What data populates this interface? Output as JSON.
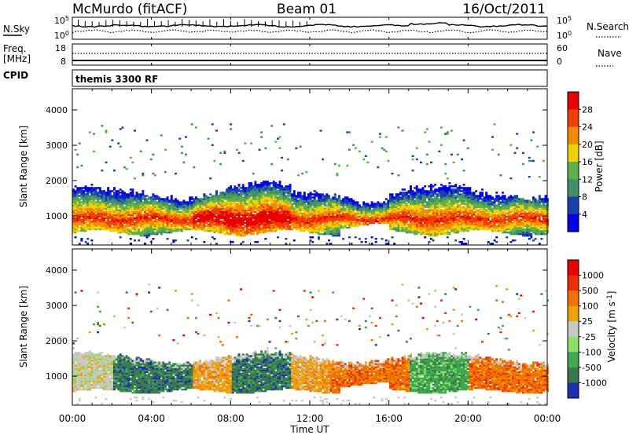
{
  "header": {
    "station": "McMurdo (fitACF)",
    "beam": "Beam 01",
    "date": "16/Oct/2011"
  },
  "status_panels": {
    "nsky": {
      "label": "N.Sky",
      "left_ticks": [
        "10^5",
        "10^0"
      ]
    },
    "nsearch": {
      "label": "N.Search",
      "right_ticks": [
        "10^5",
        "10^0"
      ]
    },
    "freq": {
      "label_line1": "Freq.",
      "label_line2": "[MHz]",
      "left_ticks": [
        "18",
        "8"
      ]
    },
    "nave": {
      "label": "Nave",
      "right_ticks": [
        "60",
        "0"
      ]
    },
    "cpid": {
      "label": "CPID",
      "value": "themis 3300 RF"
    }
  },
  "x_axis": {
    "label": "Time UT",
    "ticks": [
      "00:00",
      "04:00",
      "08:00",
      "12:00",
      "16:00",
      "20:00",
      "00:00"
    ]
  },
  "chart_data": [
    {
      "type": "heatmap",
      "name": "power-panel",
      "ylabel": "Slant Range [km]",
      "yticks": [
        1000,
        2000,
        3000,
        4000
      ],
      "ylim": [
        180,
        4600
      ],
      "xlim_hours": [
        0,
        24
      ],
      "colorbar": {
        "label": "Power [dB]",
        "ticks": [
          "4",
          "8",
          "12",
          "16",
          "20",
          "24",
          "28"
        ],
        "colors": [
          "#0000e8",
          "#1a40b0",
          "#3f8f6a",
          "#5fb04a",
          "#f0d000",
          "#f08c00",
          "#f04000",
          "#e80000"
        ]
      },
      "main_band_km": {
        "lower": 500,
        "upper": 1700,
        "peak_center": 900
      },
      "strongest_interval_hours": [
        6,
        11
      ],
      "sparse_scatter_km": [
        2000,
        3600
      ]
    },
    {
      "type": "heatmap",
      "name": "velocity-panel",
      "ylabel": "Slant Range [km]",
      "yticks": [
        1000,
        2000,
        3000,
        4000
      ],
      "ylim": [
        180,
        4600
      ],
      "xlim_hours": [
        0,
        24
      ],
      "colorbar": {
        "label": "Velocity [m s^-1]",
        "ticks": [
          "1000",
          "500",
          "100",
          "25",
          "-25",
          "-100",
          "-500",
          "-1000"
        ],
        "colors": [
          "#2030b0",
          "#3a7a4a",
          "#3fa850",
          "#8ee060",
          "#c8c8c8",
          "#f0a000",
          "#f07000",
          "#e83000",
          "#e80000"
        ]
      },
      "main_band_km": {
        "lower": 550,
        "upper": 1500
      },
      "sparse_scatter_km": [
        1700,
        3600
      ]
    }
  ]
}
